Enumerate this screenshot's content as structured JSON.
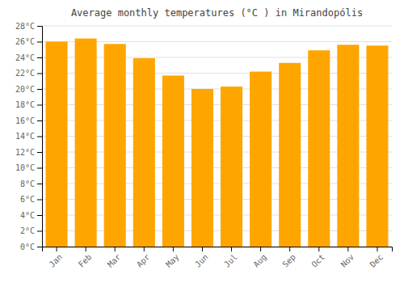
{
  "chart_data": {
    "type": "bar",
    "title": "Average monthly temperatures (°C ) in Mirandopólis",
    "categories": [
      "Jan",
      "Feb",
      "Mar",
      "Apr",
      "May",
      "Jun",
      "Jul",
      "Aug",
      "Sep",
      "Oct",
      "Nov",
      "Dec"
    ],
    "values": [
      26.0,
      26.4,
      25.7,
      23.9,
      21.7,
      20.0,
      20.3,
      22.2,
      23.3,
      24.9,
      25.6,
      25.5
    ],
    "color": "#FFA500",
    "ylim": [
      0,
      28
    ],
    "yticks": [
      {
        "value": 0,
        "label": "0°C"
      },
      {
        "value": 2,
        "label": "2°C"
      },
      {
        "value": 4,
        "label": "4°C"
      },
      {
        "value": 6,
        "label": "6°C"
      },
      {
        "value": 8,
        "label": "8°C"
      },
      {
        "value": 10,
        "label": "10°C"
      },
      {
        "value": 12,
        "label": "12°C"
      },
      {
        "value": 14,
        "label": "14°C"
      },
      {
        "value": 16,
        "label": "16°C"
      },
      {
        "value": 18,
        "label": "18°C"
      },
      {
        "value": 20,
        "label": "20°C"
      },
      {
        "value": 22,
        "label": "22°C"
      },
      {
        "value": 24,
        "label": "24°C"
      },
      {
        "value": 26,
        "label": "26°C"
      },
      {
        "value": 28,
        "label": "28°C"
      }
    ],
    "grid": true
  }
}
